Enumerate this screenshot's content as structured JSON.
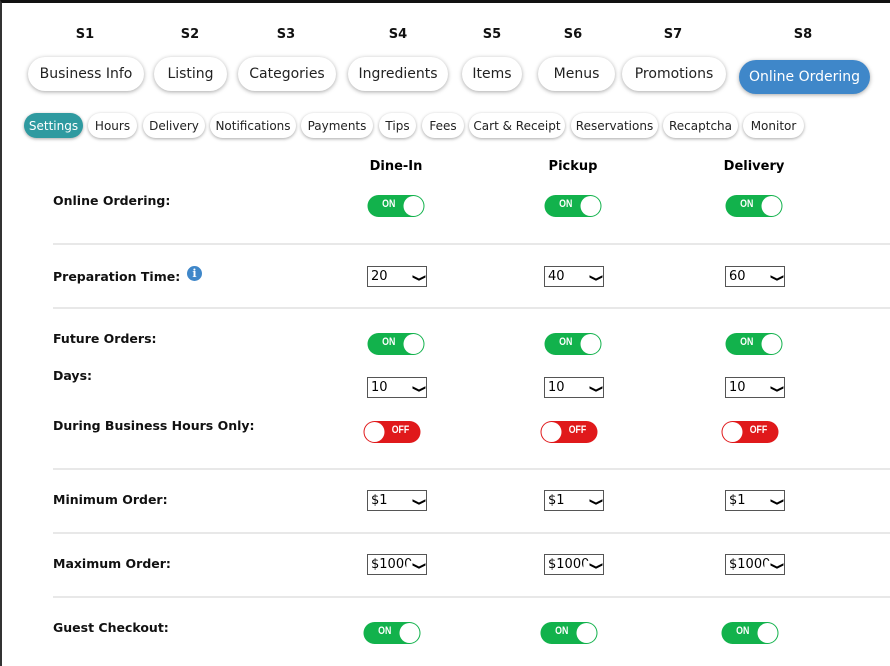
{
  "steps": [
    "S1",
    "S2",
    "S3",
    "S4",
    "S5",
    "S6",
    "S7",
    "S8"
  ],
  "main_tabs": [
    "Business Info",
    "Listing",
    "Categories",
    "Ingredients",
    "Items",
    "Menus",
    "Promotions",
    "Online Ordering"
  ],
  "active_main_tab": "Online Ordering",
  "sub_tabs": [
    "Settings",
    "Hours",
    "Delivery",
    "Notifications",
    "Payments",
    "Tips",
    "Fees",
    "Cart & Receipt",
    "Reservations",
    "Recaptcha",
    "Monitor"
  ],
  "active_sub_tab": "Settings",
  "columns": [
    "Dine-In",
    "Pickup",
    "Delivery"
  ],
  "labels": {
    "online_ordering": "Online Ordering:",
    "prep_time": "Preparation Time:",
    "future_orders": "Future Orders:",
    "days": "Days:",
    "business_hours": "During Business Hours Only:",
    "min_order": "Minimum Order:",
    "max_order": "Maximum Order:",
    "guest_checkout": "Guest Checkout:"
  },
  "online_ordering": [
    "ON",
    "ON",
    "ON"
  ],
  "prep_time": [
    "20",
    "40",
    "60"
  ],
  "future_orders": [
    "ON",
    "ON",
    "ON"
  ],
  "days": [
    "10",
    "10",
    "10"
  ],
  "business_hours": [
    "OFF",
    "OFF",
    "OFF"
  ],
  "min_order": [
    "$1",
    "$1",
    "$1"
  ],
  "max_order": [
    "$1000",
    "$1000",
    "$1000"
  ],
  "guest_checkout": [
    "ON",
    "ON",
    "ON"
  ],
  "icons": {
    "info": "info-icon",
    "chevron": "chevron-down-icon"
  },
  "colors": {
    "accent": "#3f87c9",
    "sub_active": "#2f9aa0",
    "on": "#12b24c",
    "off": "#e0191b"
  }
}
